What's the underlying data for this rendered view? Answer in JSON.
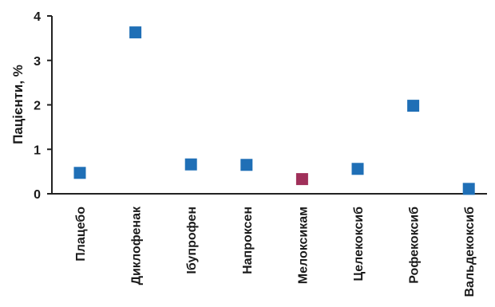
{
  "chart_data": {
    "type": "scatter",
    "title": "",
    "xlabel": "",
    "ylabel": "Пацієнти, %",
    "ylim": [
      0,
      4
    ],
    "yticks": [
      0,
      1,
      2,
      3,
      4
    ],
    "grid": false,
    "legend": "none",
    "categories": [
      "Плацебо",
      "Диклофенак",
      "Ібупрофен",
      "Напроксен",
      "Мелоксикам",
      "Целекоксиб",
      "Рофекоксиб",
      "Вальдекоксиб"
    ],
    "values": [
      0.47,
      3.63,
      0.66,
      0.65,
      0.33,
      0.56,
      1.98,
      0.11
    ],
    "point_colors": [
      "#1f6fb6",
      "#1f6fb6",
      "#1f6fb6",
      "#1f6fb6",
      "#a0305a",
      "#1f6fb6",
      "#1f6fb6",
      "#1f6fb6"
    ]
  }
}
